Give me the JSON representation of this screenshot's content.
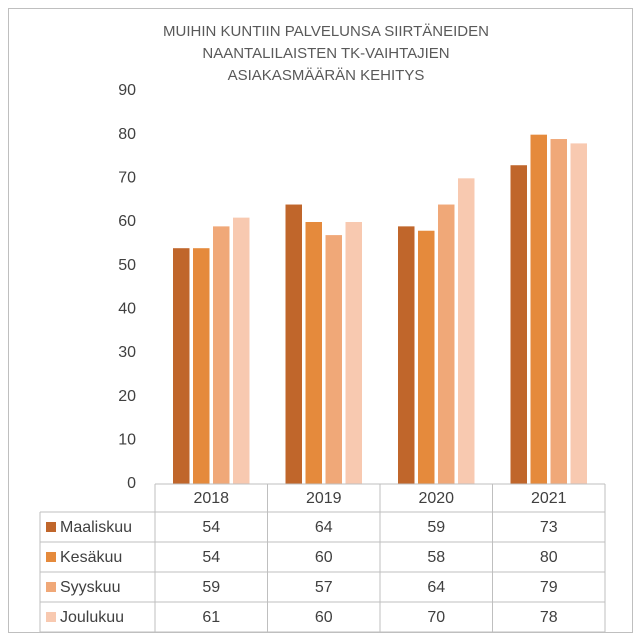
{
  "chart_data": {
    "type": "bar",
    "title": [
      "MUIHIN KUNTIIN PALVELUNSA SIIRTÄNEIDEN",
      "NAANTALILAISTEN TK-VAIHTAJIEN",
      "ASIAKASMÄÄRÄN KEHITYS"
    ],
    "categories": [
      "2018",
      "2019",
      "2020",
      "2021"
    ],
    "series": [
      {
        "name": "Maaliskuu",
        "color": "#c0662b",
        "values": [
          54,
          64,
          59,
          73
        ]
      },
      {
        "name": "Kesäkuu",
        "color": "#e58a3c",
        "values": [
          54,
          60,
          58,
          80
        ]
      },
      {
        "name": "Syyskuu",
        "color": "#f0a878",
        "values": [
          59,
          57,
          64,
          79
        ]
      },
      {
        "name": "Joulukuu",
        "color": "#f8c9b0",
        "values": [
          61,
          60,
          70,
          78
        ]
      }
    ],
    "ylim": [
      0,
      90
    ],
    "yticks": [
      0,
      10,
      20,
      30,
      40,
      50,
      60,
      70,
      80,
      90
    ],
    "grid": false
  }
}
